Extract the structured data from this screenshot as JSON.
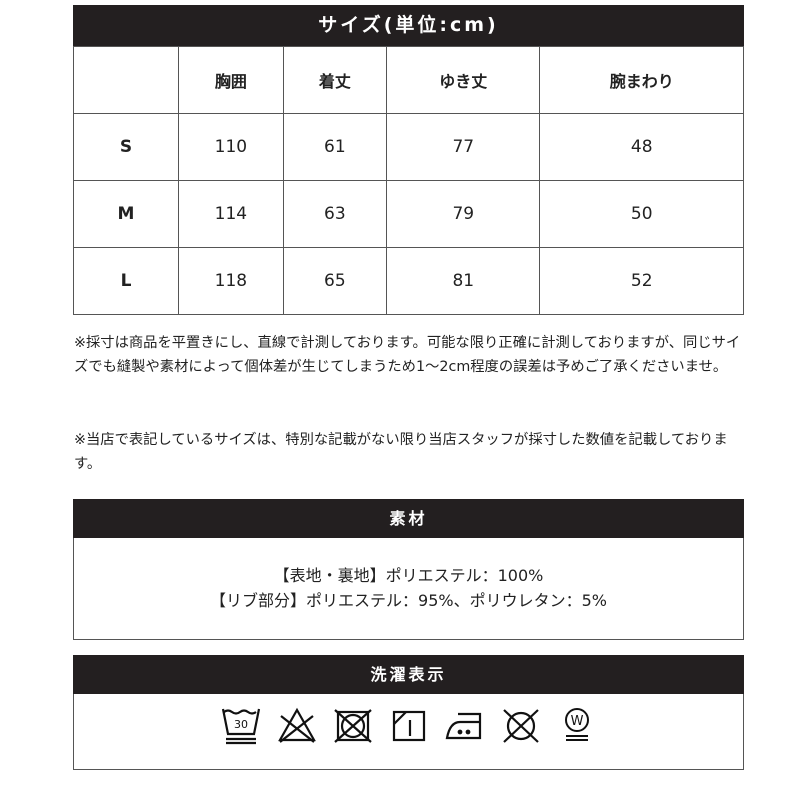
{
  "size_table": {
    "title": "サイズ(単位:cm)",
    "columns": [
      "",
      "胸囲",
      "着丈",
      "ゆき丈",
      "腕まわり"
    ],
    "rows": [
      {
        "size": "S",
        "values": [
          "110",
          "61",
          "77",
          "48"
        ]
      },
      {
        "size": "M",
        "values": [
          "114",
          "63",
          "79",
          "50"
        ]
      },
      {
        "size": "L",
        "values": [
          "118",
          "65",
          "81",
          "52"
        ]
      }
    ]
  },
  "notes": [
    "※採寸は商品を平置きにし、直線で計測しております。可能な限り正確に計測しておりますが、同じサイズでも縫製や素材によって個体差が生じてしまうため1～2cm程度の誤差は予めご了承くださいませ。",
    "※当店で表記しているサイズは、特別な記載がない限り当店スタッフが採寸した数値を記載しております。"
  ],
  "material": {
    "title": "素材",
    "lines": [
      "【表地・裏地】ポリエステル：100%",
      "【リブ部分】ポリエステル：95%、ポリウレタン：5%"
    ]
  },
  "care": {
    "title": "洗濯表示",
    "icons": [
      "wash-30-gentle-icon",
      "no-bleach-icon",
      "no-tumble-dry-icon",
      "line-dry-shade-icon",
      "iron-medium-icon",
      "no-dry-clean-icon",
      "wet-clean-gentle-icon"
    ],
    "wash_temp": "30",
    "wet_clean_letter": "W"
  }
}
